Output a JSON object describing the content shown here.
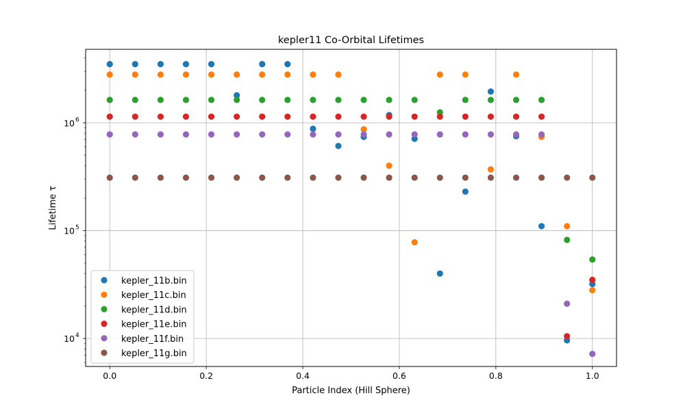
{
  "chart_data": {
    "type": "scatter",
    "title": "kepler11 Co-Orbital Lifetimes",
    "xlabel": "Particle Index (Hill Sphere)",
    "ylabel": "Lifetime τ",
    "xlim": [
      -0.05,
      1.05
    ],
    "ylim": [
      5500,
      4800000
    ],
    "yscale": "log",
    "grid": true,
    "legend_position": "lower-left",
    "x_ticks": [
      0.0,
      0.2,
      0.4,
      0.6,
      0.8,
      1.0
    ],
    "x_tick_labels": [
      "0.0",
      "0.2",
      "0.4",
      "0.6",
      "0.8",
      "1.0"
    ],
    "y_ticks": [
      10000,
      100000,
      1000000
    ],
    "y_tick_labels": [
      {
        "base": "10",
        "exp": "4"
      },
      {
        "base": "10",
        "exp": "5"
      },
      {
        "base": "10",
        "exp": "6"
      }
    ],
    "x": [
      0.0,
      0.0526,
      0.1053,
      0.1579,
      0.2105,
      0.2632,
      0.3158,
      0.3684,
      0.4211,
      0.4737,
      0.5263,
      0.5789,
      0.6316,
      0.6842,
      0.7368,
      0.7895,
      0.8421,
      0.8947,
      0.9474,
      1.0
    ],
    "series": [
      {
        "name": "kepler_11b.bin",
        "color": "#1f77b4",
        "values": [
          3500000,
          3500000,
          3500000,
          3500000,
          3500000,
          1800000,
          3500000,
          3500000,
          880000,
          610000,
          740000,
          1180000,
          710000,
          40000,
          230000,
          1950000,
          750000,
          110000,
          9600,
          32000
        ]
      },
      {
        "name": "kepler_11c.bin",
        "color": "#ff7f0e",
        "values": [
          2800000,
          2800000,
          2800000,
          2800000,
          2800000,
          2800000,
          2800000,
          2800000,
          2800000,
          2800000,
          870000,
          400000,
          78000,
          2800000,
          2800000,
          370000,
          2800000,
          740000,
          110000,
          28000
        ]
      },
      {
        "name": "kepler_11d.bin",
        "color": "#2ca02c",
        "values": [
          1630000,
          1630000,
          1630000,
          1630000,
          1630000,
          1630000,
          1630000,
          1630000,
          1630000,
          1630000,
          1630000,
          1630000,
          1630000,
          1250000,
          1630000,
          1630000,
          1630000,
          1630000,
          82000,
          54000
        ]
      },
      {
        "name": "kepler_11e.bin",
        "color": "#d62728",
        "values": [
          1140000,
          1140000,
          1140000,
          1140000,
          1140000,
          1140000,
          1140000,
          1140000,
          1140000,
          1140000,
          1140000,
          1140000,
          1140000,
          1140000,
          1140000,
          1140000,
          1140000,
          1140000,
          10500,
          35000
        ]
      },
      {
        "name": "kepler_11f.bin",
        "color": "#9467bd",
        "values": [
          780000,
          780000,
          780000,
          780000,
          780000,
          780000,
          780000,
          780000,
          780000,
          780000,
          780000,
          780000,
          780000,
          780000,
          780000,
          780000,
          780000,
          780000,
          21000,
          7200
        ]
      },
      {
        "name": "kepler_11g.bin",
        "color": "#8c564b",
        "values": [
          310000,
          310000,
          310000,
          310000,
          310000,
          310000,
          310000,
          310000,
          310000,
          310000,
          310000,
          310000,
          310000,
          310000,
          310000,
          310000,
          310000,
          310000,
          310000,
          310000
        ]
      }
    ]
  }
}
